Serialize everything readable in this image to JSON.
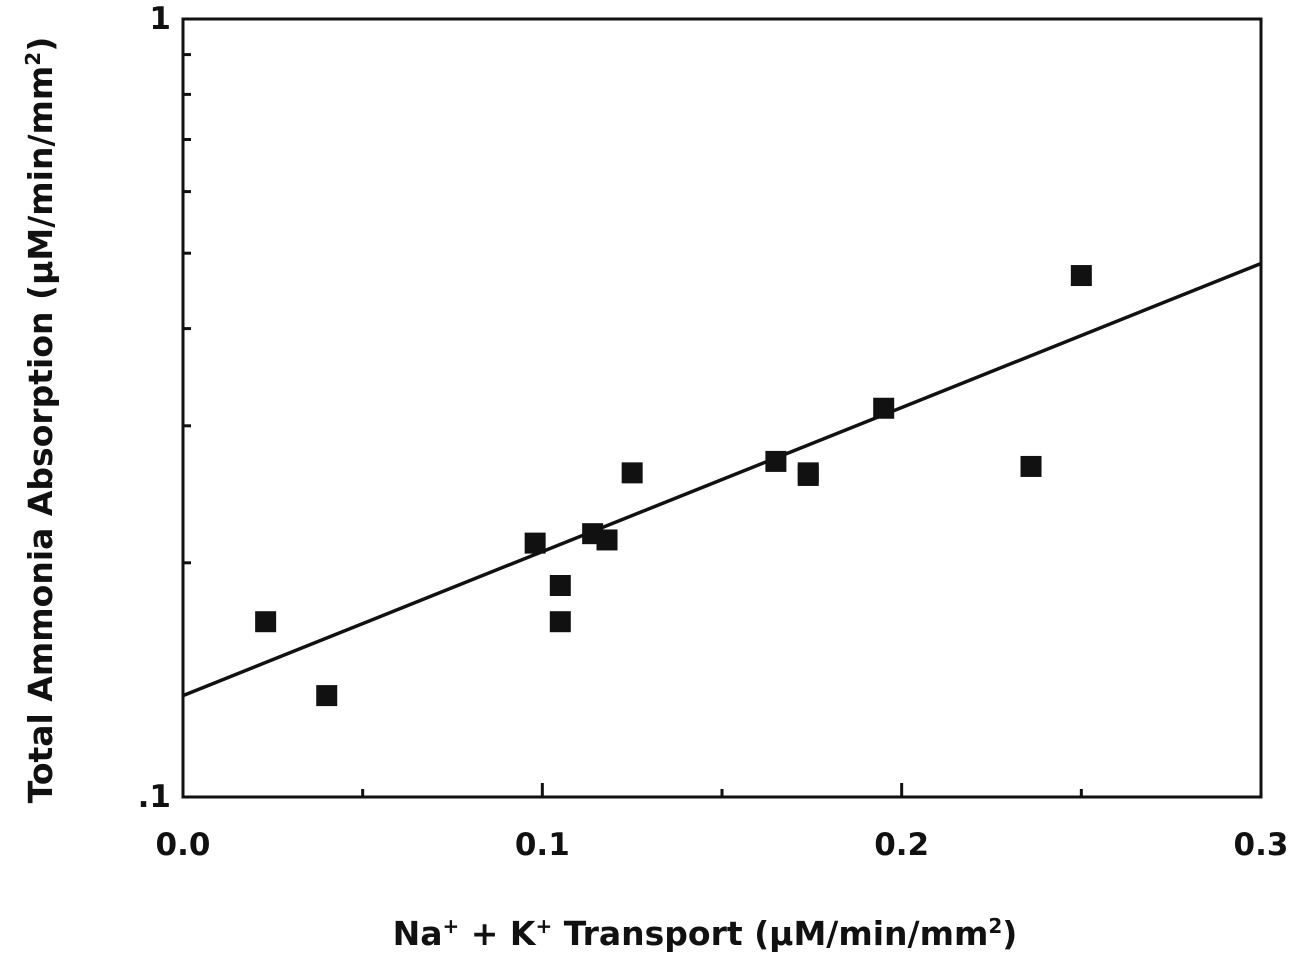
{
  "chart_data": {
    "type": "scatter",
    "title": "",
    "xlabel": {
      "parts": [
        {
          "text": "Na",
          "sup": false
        },
        {
          "text": "+",
          "sup": true
        },
        {
          "text": " + K",
          "sup": false
        },
        {
          "text": "+",
          "sup": true
        },
        {
          "text": " Transport (µM/min/mm",
          "sup": false
        },
        {
          "text": "2",
          "sup": true
        },
        {
          "text": ")",
          "sup": false
        }
      ]
    },
    "ylabel": {
      "parts": [
        {
          "text": "Total Ammonia Absorption (µM/min/mm",
          "sup": false
        },
        {
          "text": "2",
          "sup": true
        },
        {
          "text": ")",
          "sup": false
        }
      ]
    },
    "x_scale": "linear",
    "y_scale": "log",
    "xlim": [
      0.0,
      0.3
    ],
    "ylim": [
      0.1,
      1
    ],
    "x_ticks": [
      {
        "value": 0.0,
        "label": "0.0"
      },
      {
        "value": 0.1,
        "label": "0.1"
      },
      {
        "value": 0.2,
        "label": "0.2"
      },
      {
        "value": 0.3,
        "label": "0.3"
      }
    ],
    "x_minor_ticks": [
      0.05,
      0.15,
      0.25
    ],
    "y_ticks": [
      {
        "value": 0.1,
        "label": ".1"
      },
      {
        "value": 1,
        "label": "1"
      }
    ],
    "y_minor_ticks": [
      0.2,
      0.3,
      0.4,
      0.5,
      0.6,
      0.7,
      0.8,
      0.9
    ],
    "grid": false,
    "series": [
      {
        "marker": "square",
        "points": [
          {
            "x": 0.023,
            "y": 0.168
          },
          {
            "x": 0.04,
            "y": 0.135
          },
          {
            "x": 0.098,
            "y": 0.212
          },
          {
            "x": 0.105,
            "y": 0.187
          },
          {
            "x": 0.105,
            "y": 0.168
          },
          {
            "x": 0.114,
            "y": 0.218
          },
          {
            "x": 0.118,
            "y": 0.214
          },
          {
            "x": 0.125,
            "y": 0.261
          },
          {
            "x": 0.165,
            "y": 0.27
          },
          {
            "x": 0.174,
            "y": 0.261
          },
          {
            "x": 0.174,
            "y": 0.259
          },
          {
            "x": 0.195,
            "y": 0.316
          },
          {
            "x": 0.236,
            "y": 0.266
          },
          {
            "x": 0.25,
            "y": 0.468
          }
        ]
      }
    ],
    "fit_line": {
      "x": [
        0.0,
        0.3
      ],
      "y": [
        0.135,
        0.485
      ]
    }
  }
}
